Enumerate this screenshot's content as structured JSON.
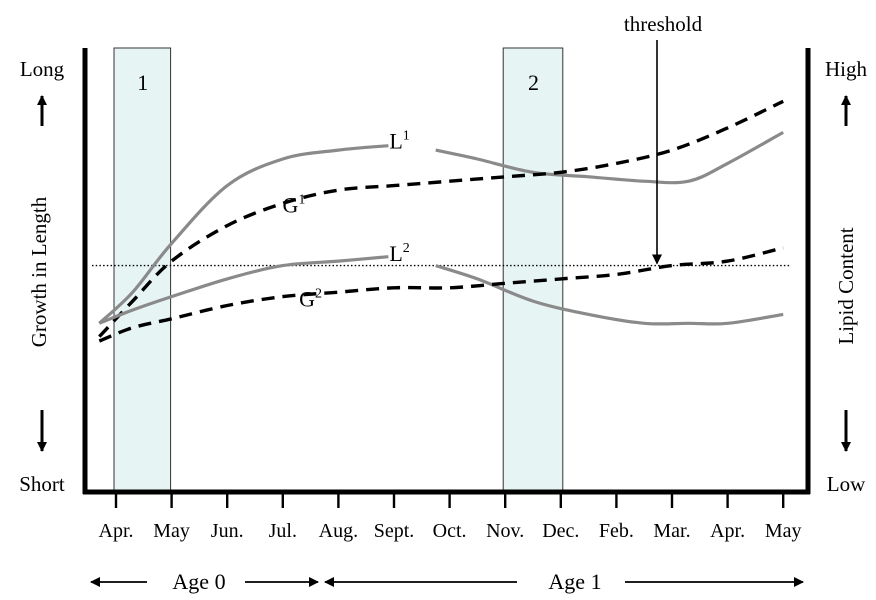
{
  "chart_data": {
    "type": "line",
    "title": "",
    "left_axis": {
      "label": "Growth in Length",
      "top": "Long",
      "bottom": "Short"
    },
    "right_axis": {
      "label": "Lipid Content",
      "top": "High",
      "bottom": "Low"
    },
    "categories": [
      "Apr.",
      "May",
      "Jun.",
      "Jul.",
      "Aug.",
      "Sept.",
      "Oct.",
      "Nov.",
      "Dec.",
      "Feb.",
      "Mar.",
      "Apr.",
      "May"
    ],
    "age_periods": [
      {
        "label": "Age 0",
        "from": "Apr.",
        "to": "Aug."
      },
      {
        "label": "Age 1",
        "from": "Aug.",
        "to": "May"
      }
    ],
    "windows": [
      {
        "label": "1",
        "from": "Apr.",
        "to": "May",
        "color": "#e6f4f4"
      },
      {
        "label": "2",
        "from": "Nov.",
        "to": "Dec.",
        "color": "#e6f4f4"
      }
    ],
    "threshold": {
      "label": "threshold",
      "value": 0.51
    },
    "ylim": [
      0,
      1
    ],
    "series": [
      {
        "name": "L",
        "superscript": "1",
        "style": "solid",
        "color": "#8a8a8a",
        "label_at": 5.1,
        "points": [
          [
            -0.3,
            0.38
          ],
          [
            0.3,
            0.45
          ],
          [
            1,
            0.56
          ],
          [
            2,
            0.69
          ],
          [
            3,
            0.75
          ],
          [
            4,
            0.77
          ],
          [
            4.9,
            0.78
          ],
          [
            5.75,
            0.77
          ],
          [
            6.5,
            0.75
          ],
          [
            7.5,
            0.72
          ],
          [
            8.5,
            0.71
          ],
          [
            9.5,
            0.7
          ],
          [
            10.3,
            0.7
          ],
          [
            11,
            0.74
          ],
          [
            12,
            0.81
          ]
        ]
      },
      {
        "name": "G",
        "superscript": "1",
        "style": "dashed",
        "color": "#000000",
        "label_at": 3.2,
        "points": [
          [
            -0.3,
            0.35
          ],
          [
            0.3,
            0.43
          ],
          [
            1,
            0.52
          ],
          [
            2,
            0.6
          ],
          [
            3,
            0.65
          ],
          [
            4,
            0.68
          ],
          [
            5,
            0.69
          ],
          [
            6,
            0.7
          ],
          [
            7,
            0.71
          ],
          [
            8,
            0.72
          ],
          [
            9,
            0.74
          ],
          [
            10,
            0.77
          ],
          [
            11,
            0.82
          ],
          [
            12,
            0.88
          ]
        ]
      },
      {
        "name": "L",
        "superscript": "2",
        "style": "solid",
        "color": "#8a8a8a",
        "label_at": 5.1,
        "points": [
          [
            -0.3,
            0.38
          ],
          [
            0.3,
            0.41
          ],
          [
            1,
            0.44
          ],
          [
            2,
            0.48
          ],
          [
            3,
            0.51
          ],
          [
            4,
            0.52
          ],
          [
            4.9,
            0.53
          ],
          [
            5.75,
            0.51
          ],
          [
            6.5,
            0.48
          ],
          [
            7.5,
            0.43
          ],
          [
            8.5,
            0.4
          ],
          [
            9.5,
            0.38
          ],
          [
            10.3,
            0.38
          ],
          [
            11,
            0.38
          ],
          [
            12,
            0.4
          ]
        ]
      },
      {
        "name": "G",
        "superscript": "2",
        "style": "dashed",
        "color": "#000000",
        "label_at": 3.5,
        "points": [
          [
            -0.3,
            0.34
          ],
          [
            0.3,
            0.37
          ],
          [
            1,
            0.39
          ],
          [
            2,
            0.42
          ],
          [
            3,
            0.44
          ],
          [
            4,
            0.45
          ],
          [
            5,
            0.46
          ],
          [
            6,
            0.46
          ],
          [
            7,
            0.47
          ],
          [
            8,
            0.48
          ],
          [
            9,
            0.49
          ],
          [
            10,
            0.51
          ],
          [
            11,
            0.52
          ],
          [
            12,
            0.55
          ]
        ]
      }
    ]
  }
}
